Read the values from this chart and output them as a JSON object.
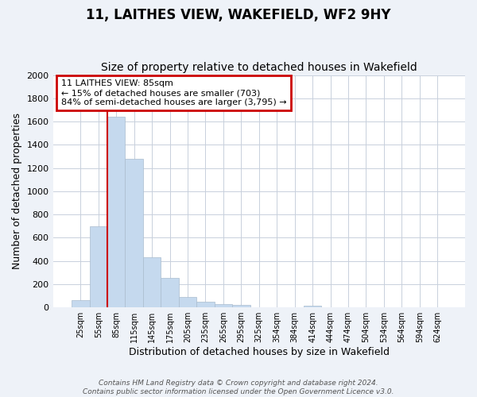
{
  "title": "11, LAITHES VIEW, WAKEFIELD, WF2 9HY",
  "subtitle": "Size of property relative to detached houses in Wakefield",
  "xlabel": "Distribution of detached houses by size in Wakefield",
  "ylabel": "Number of detached properties",
  "bar_labels": [
    "25sqm",
    "55sqm",
    "85sqm",
    "115sqm",
    "145sqm",
    "175sqm",
    "205sqm",
    "235sqm",
    "265sqm",
    "295sqm",
    "325sqm",
    "354sqm",
    "384sqm",
    "414sqm",
    "444sqm",
    "474sqm",
    "504sqm",
    "534sqm",
    "564sqm",
    "594sqm",
    "624sqm"
  ],
  "bar_values": [
    65,
    700,
    1640,
    1280,
    435,
    255,
    90,
    50,
    30,
    20,
    0,
    0,
    0,
    15,
    0,
    0,
    0,
    0,
    0,
    0,
    0
  ],
  "bar_color": "#c5d9ee",
  "bar_edge_color": "#c5d9ee",
  "vline_x_index": 2,
  "vline_color": "#cc0000",
  "annotation_title": "11 LAITHES VIEW: 85sqm",
  "annotation_line1": "← 15% of detached houses are smaller (703)",
  "annotation_line2": "84% of semi-detached houses are larger (3,795) →",
  "annotation_box_color": "white",
  "annotation_box_edgecolor": "#cc0000",
  "ylim": [
    0,
    2000
  ],
  "yticks": [
    0,
    200,
    400,
    600,
    800,
    1000,
    1200,
    1400,
    1600,
    1800,
    2000
  ],
  "footer_line1": "Contains HM Land Registry data © Crown copyright and database right 2024.",
  "footer_line2": "Contains public sector information licensed under the Open Government Licence v3.0.",
  "background_color": "#eef2f8",
  "plot_bg_color": "#ffffff",
  "grid_color": "#c8d0dc",
  "title_fontsize": 12,
  "subtitle_fontsize": 10,
  "font_family": "DejaVu Sans"
}
